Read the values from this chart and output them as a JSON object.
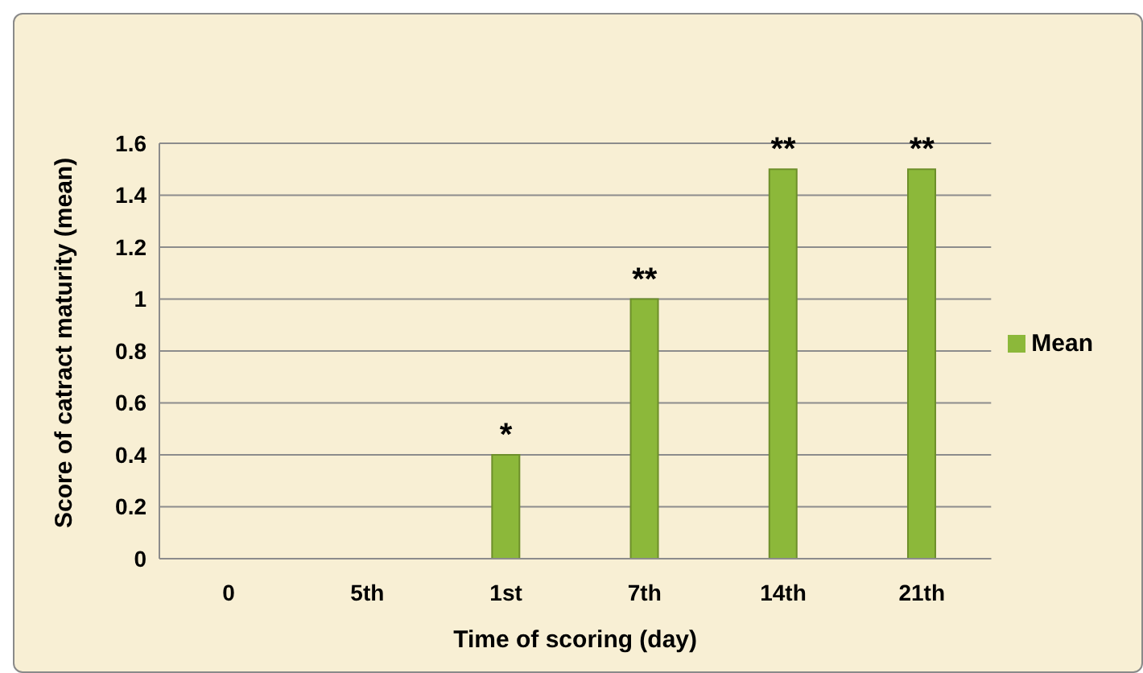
{
  "chart_data": {
    "type": "bar",
    "xlabel": "Time of scoring (day)",
    "ylabel": "Score of catract maturity (mean)",
    "categories": [
      "0",
      "5th",
      "1st",
      "7th",
      "14th",
      "21th"
    ],
    "series": [
      {
        "name": "Mean",
        "color": "#8cb83a",
        "values": [
          0,
          0,
          0.4,
          1,
          1.5,
          1.5
        ]
      }
    ],
    "ylim": [
      0,
      1.6
    ],
    "yticks": [
      0,
      0.2,
      0.4,
      0.6,
      0.8,
      1,
      1.2,
      1.4,
      1.6
    ],
    "grid": "y",
    "legend": "right",
    "annotations": [
      {
        "text": "*",
        "x": "1st",
        "y": 0.4
      },
      {
        "text": "**",
        "x": "7th",
        "y": 1
      },
      {
        "text": "**",
        "x": "14th",
        "y": 1.5
      },
      {
        "text": "**",
        "x": "21th",
        "y": 1.5
      }
    ]
  }
}
